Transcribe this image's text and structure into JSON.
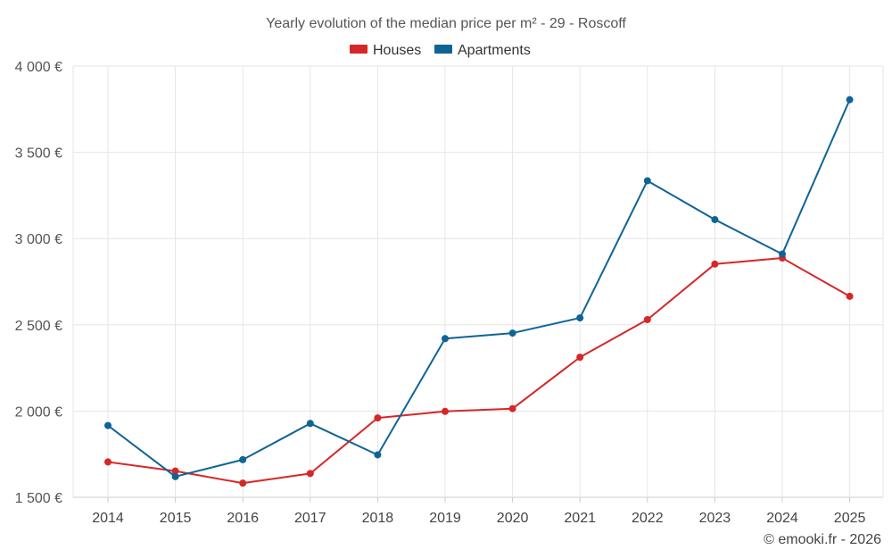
{
  "chart_data": {
    "type": "line",
    "title": "Yearly evolution of the median price per m² - 29 - Roscoff",
    "categories": [
      "2014",
      "2015",
      "2016",
      "2017",
      "2018",
      "2019",
      "2020",
      "2021",
      "2022",
      "2023",
      "2024",
      "2025"
    ],
    "series": [
      {
        "name": "Houses",
        "color": "#d62728",
        "values": [
          1705,
          1652,
          1582,
          1638,
          1960,
          1998,
          2014,
          2312,
          2530,
          2852,
          2887,
          2665
        ]
      },
      {
        "name": "Apartments",
        "color": "#0f6496",
        "values": [
          1916,
          1620,
          1718,
          1928,
          1746,
          2420,
          2452,
          2540,
          3335,
          3110,
          2910,
          3805
        ]
      }
    ],
    "y_ticks": [
      1500,
      2000,
      2500,
      3000,
      3500,
      4000
    ],
    "y_tick_labels": [
      "1 500 €",
      "2 000 €",
      "2 500 €",
      "3 000 €",
      "3 500 €",
      "4 000 €"
    ],
    "ylim": [
      1500,
      4000
    ],
    "xlabel": "",
    "ylabel": "",
    "grid": true,
    "legend_position": "top-center"
  },
  "credit": "© emooki.fr - 2026"
}
